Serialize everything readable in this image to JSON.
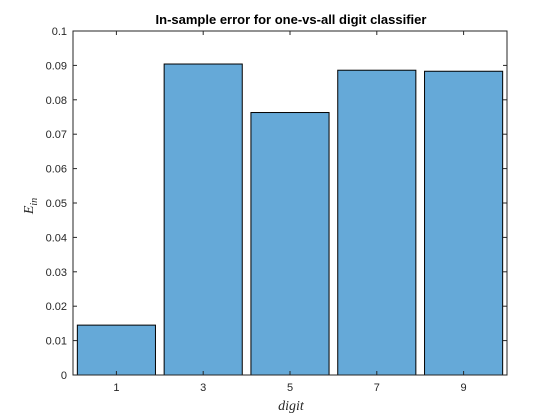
{
  "chart_data": {
    "type": "bar",
    "title": "In-sample error for one-vs-all digit classifier",
    "xlabel": "digit",
    "ylabel_main": "E",
    "ylabel_sub": "in",
    "categories": [
      "1",
      "3",
      "5",
      "7",
      "9"
    ],
    "values": [
      0.0145,
      0.0904,
      0.0763,
      0.0886,
      0.0883
    ],
    "ylim": [
      0,
      0.1
    ],
    "yticks": [
      "0",
      "0.01",
      "0.02",
      "0.03",
      "0.04",
      "0.05",
      "0.06",
      "0.07",
      "0.08",
      "0.09",
      "0.1"
    ],
    "grid": false,
    "bar_color": "#65a9d8",
    "edge_color": "#000000"
  }
}
